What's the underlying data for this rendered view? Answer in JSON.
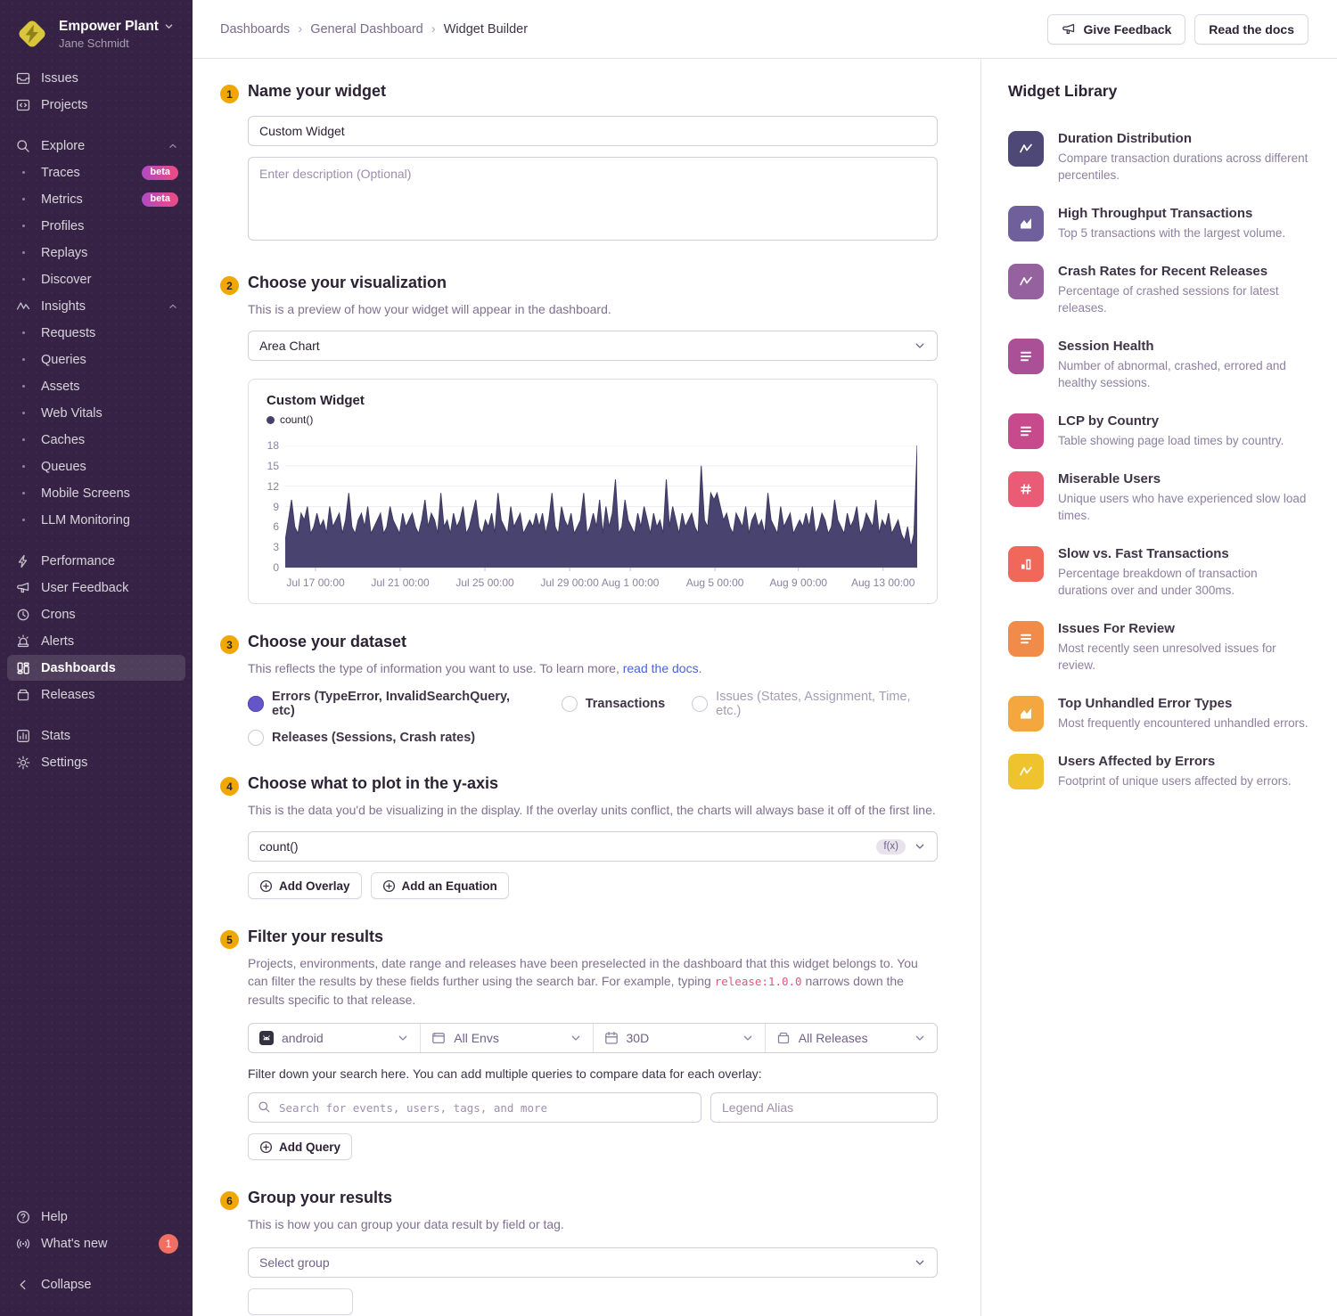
{
  "sidebar": {
    "org": "Empower Plant",
    "user": "Jane Schmidt",
    "items": [
      {
        "label": "Issues",
        "icon": "issues"
      },
      {
        "label": "Projects",
        "icon": "projects"
      },
      {
        "label": "Explore",
        "icon": "search",
        "chevron": true,
        "gap": true
      },
      {
        "label": "Traces",
        "bullet": true,
        "badge": "beta"
      },
      {
        "label": "Metrics",
        "bullet": true,
        "badge": "beta"
      },
      {
        "label": "Profiles",
        "bullet": true
      },
      {
        "label": "Replays",
        "bullet": true
      },
      {
        "label": "Discover",
        "bullet": true
      },
      {
        "label": "Insights",
        "icon": "insights",
        "chevron": true
      },
      {
        "label": "Requests",
        "bullet": true
      },
      {
        "label": "Queries",
        "bullet": true
      },
      {
        "label": "Assets",
        "bullet": true
      },
      {
        "label": "Web Vitals",
        "bullet": true
      },
      {
        "label": "Caches",
        "bullet": true
      },
      {
        "label": "Queues",
        "bullet": true
      },
      {
        "label": "Mobile Screens",
        "bullet": true
      },
      {
        "label": "LLM Monitoring",
        "bullet": true
      },
      {
        "label": "Performance",
        "icon": "performance",
        "gap": true
      },
      {
        "label": "User Feedback",
        "icon": "feedback"
      },
      {
        "label": "Crons",
        "icon": "crons"
      },
      {
        "label": "Alerts",
        "icon": "alerts"
      },
      {
        "label": "Dashboards",
        "icon": "dashboards",
        "active": true
      },
      {
        "label": "Releases",
        "icon": "releases"
      },
      {
        "label": "Stats",
        "icon": "stats",
        "gap": true
      },
      {
        "label": "Settings",
        "icon": "settings"
      }
    ],
    "footer_items": [
      {
        "label": "Help",
        "icon": "help"
      },
      {
        "label": "What's new",
        "icon": "whatsnew",
        "badge_count": "1"
      },
      {
        "label": "Collapse",
        "icon": "collapse",
        "gap": true
      }
    ]
  },
  "header": {
    "breadcrumbs": [
      "Dashboards",
      "General Dashboard",
      "Widget Builder"
    ],
    "feedback_label": "Give Feedback",
    "docs_label": "Read the docs"
  },
  "steps": {
    "step1": {
      "num": "1",
      "title": "Name your widget",
      "name_value": "Custom Widget",
      "desc_placeholder": "Enter description (Optional)"
    },
    "step2": {
      "num": "2",
      "title": "Choose your visualization",
      "subtitle": "This is a preview of how your widget will appear in the dashboard.",
      "select_value": "Area Chart"
    },
    "step3": {
      "num": "3",
      "title": "Choose your dataset",
      "subtitle_pre": "This reflects the type of information you want to use. To learn more, ",
      "subtitle_link": "read the docs",
      "subtitle_post": ".",
      "options": [
        {
          "label": "Errors (TypeError, InvalidSearchQuery, etc)",
          "selected": true
        },
        {
          "label": "Transactions"
        },
        {
          "label": "Issues (States, Assignment, Time, etc.)",
          "disabled": true
        },
        {
          "label": "Releases (Sessions, Crash rates)"
        }
      ]
    },
    "step4": {
      "num": "4",
      "title": "Choose what to plot in the y-axis",
      "subtitle": "This is the data you'd be visualizing in the display. If the overlay units conflict, the charts will always base it off of the first line.",
      "select_value": "count()",
      "fx_badge": "f(x)",
      "add_overlay": "Add Overlay",
      "add_equation": "Add an Equation"
    },
    "step5": {
      "num": "5",
      "title": "Filter your results",
      "subtitle_pre": "Projects, environments, date range and releases have been preselected in the dashboard that this widget belongs to. You can filter the results by these fields further using the search bar. For example, typing ",
      "subtitle_code": "release:1.0.0",
      "subtitle_post": " narrows down the results specific to that release.",
      "filters": [
        {
          "icon": "android",
          "label": "android"
        },
        {
          "icon": "env",
          "label": "All Envs"
        },
        {
          "icon": "calendar",
          "label": "30D"
        },
        {
          "icon": "release",
          "label": "All Releases"
        }
      ],
      "hint": "Filter down your search here. You can add multiple queries to compare data for each overlay:",
      "search_placeholder": "Search for events, users, tags, and more",
      "alias_placeholder": "Legend Alias",
      "add_query": "Add Query"
    },
    "step6": {
      "num": "6",
      "title": "Group your results",
      "subtitle": "This is how you can group your data result by field or tag.",
      "select_placeholder": "Select group"
    }
  },
  "chart_data": {
    "type": "area",
    "title": "Custom Widget",
    "legend_label": "count()",
    "series_color": "#494370",
    "ylim": [
      0,
      18
    ],
    "yticks": [
      0,
      3,
      6,
      9,
      12,
      15,
      18
    ],
    "grid": true,
    "legend_position": "top-left",
    "xticks": [
      {
        "label": "Jul 17 00:00",
        "f": 0.048
      },
      {
        "label": "Jul 21 00:00",
        "f": 0.182
      },
      {
        "label": "Jul 25 00:00",
        "f": 0.316
      },
      {
        "label": "Jul 29 00:00",
        "f": 0.45
      },
      {
        "label": "Aug 1 00:00",
        "f": 0.546
      },
      {
        "label": "Aug 5 00:00",
        "f": 0.68
      },
      {
        "label": "Aug 9 00:00",
        "f": 0.812
      },
      {
        "label": "Aug 13 00:00",
        "f": 0.946
      }
    ],
    "values": [
      4,
      7,
      10,
      6,
      5,
      8,
      7,
      9,
      5,
      6,
      8,
      6,
      7,
      5,
      9,
      6,
      7,
      8,
      5,
      7,
      11,
      6,
      5,
      7,
      8,
      6,
      9,
      5,
      6,
      7,
      8,
      5,
      6,
      9,
      7,
      6,
      5,
      8,
      6,
      7,
      8,
      6,
      5,
      7,
      10,
      6,
      8,
      7,
      5,
      11,
      6,
      7,
      5,
      8,
      6,
      7,
      9,
      5,
      6,
      8,
      10,
      6,
      5,
      7,
      6,
      8,
      5,
      11,
      7,
      6,
      5,
      9,
      6,
      7,
      8,
      5,
      6,
      7,
      6,
      8,
      6,
      8,
      5,
      7,
      11,
      6,
      5,
      9,
      7,
      6,
      8,
      5,
      6,
      7,
      11,
      5,
      6,
      8,
      6,
      10,
      5,
      9,
      6,
      8,
      13,
      5,
      6,
      10,
      7,
      6,
      5,
      8,
      6,
      9,
      7,
      5,
      8,
      6,
      7,
      5,
      13,
      6,
      9,
      7,
      5,
      8,
      6,
      7,
      8,
      6,
      5,
      15,
      7,
      6,
      11,
      10,
      11,
      9,
      7,
      8,
      6,
      5,
      8,
      7,
      6,
      9,
      5,
      7,
      8,
      6,
      7,
      5,
      11,
      7,
      6,
      5,
      9,
      6,
      7,
      8,
      5,
      6,
      7,
      6,
      8,
      6,
      9,
      5,
      6,
      8,
      7,
      5,
      6,
      10,
      7,
      6,
      5,
      8,
      6,
      7,
      9,
      5,
      6,
      8,
      7,
      6,
      10,
      5,
      7,
      6,
      8,
      5,
      6,
      7,
      5,
      4,
      6,
      3,
      5,
      18
    ]
  },
  "widget_library": {
    "title": "Widget Library",
    "items": [
      {
        "icon": "line-chart",
        "color": "#4d4876",
        "title": "Duration Distribution",
        "desc": "Compare transaction durations across different percentiles."
      },
      {
        "icon": "area-chart",
        "color": "#6f5f9a",
        "title": "High Throughput Transactions",
        "desc": "Top 5 transactions with the largest volume."
      },
      {
        "icon": "line-chart",
        "color": "#95619e",
        "title": "Crash Rates for Recent Releases",
        "desc": "Percentage of crashed sessions for latest releases."
      },
      {
        "icon": "rows",
        "color": "#ab4f97",
        "title": "Session Health",
        "desc": "Number of abnormal, crashed, errored and healthy sessions."
      },
      {
        "icon": "rows",
        "color": "#c74b8c",
        "title": "LCP by Country",
        "desc": "Table showing page load times by country."
      },
      {
        "icon": "hash",
        "color": "#ea5b76",
        "title": "Miserable Users",
        "desc": "Unique users who have experienced slow load times."
      },
      {
        "icon": "bars",
        "color": "#f0685a",
        "title": "Slow vs. Fast Transactions",
        "desc": "Percentage breakdown of transaction durations over and under 300ms."
      },
      {
        "icon": "rows",
        "color": "#f08b49",
        "title": "Issues For Review",
        "desc": "Most recently seen unresolved issues for review."
      },
      {
        "icon": "area-chart",
        "color": "#f5a73f",
        "title": "Top Unhandled Error Types",
        "desc": "Most frequently encountered unhandled errors."
      },
      {
        "icon": "line-chart",
        "color": "#efc32e",
        "title": "Users Affected by Errors",
        "desc": "Footprint of unique users affected by errors."
      }
    ]
  }
}
